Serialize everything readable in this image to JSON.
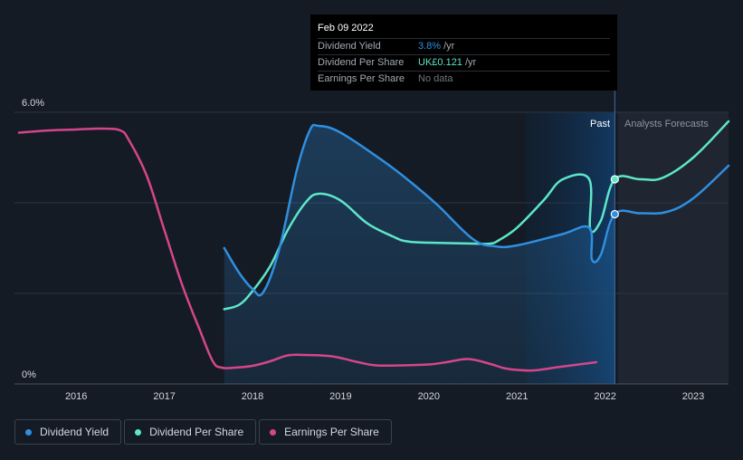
{
  "chart_data": {
    "type": "line",
    "y_axis": {
      "min": 0,
      "max": 6.0,
      "unit": "%",
      "tick_labels": [
        "6.0%",
        "0%"
      ],
      "grid": true
    },
    "x_axis": {
      "min": 2015.3,
      "max": 2023.4,
      "tick_labels": [
        "2016",
        "2017",
        "2018",
        "2019",
        "2020",
        "2021",
        "2022",
        "2023"
      ],
      "ticks": [
        2016,
        2017,
        2018,
        2019,
        2020,
        2021,
        2022,
        2023
      ]
    },
    "divider_date": 2022.11,
    "shaded_band": {
      "from": 2021.1,
      "to": 2022.11
    },
    "region_labels": {
      "past": "Past",
      "forecast": "Analysts Forecasts"
    },
    "series": [
      {
        "name": "Dividend Yield",
        "color": "#2f8fe0",
        "area": true,
        "points": [
          [
            2017.68,
            3.0
          ],
          [
            2017.85,
            2.45
          ],
          [
            2018.0,
            2.1
          ],
          [
            2018.12,
            2.02
          ],
          [
            2018.3,
            2.95
          ],
          [
            2018.5,
            4.7
          ],
          [
            2018.65,
            5.6
          ],
          [
            2018.75,
            5.7
          ],
          [
            2019.0,
            5.55
          ],
          [
            2019.5,
            4.9
          ],
          [
            2019.8,
            4.45
          ],
          [
            2020.1,
            3.95
          ],
          [
            2020.5,
            3.2
          ],
          [
            2020.75,
            3.04
          ],
          [
            2021.0,
            3.06
          ],
          [
            2021.5,
            3.3
          ],
          [
            2021.82,
            3.45
          ],
          [
            2021.85,
            2.75
          ],
          [
            2021.95,
            2.85
          ],
          [
            2022.11,
            3.75
          ],
          [
            2022.4,
            3.77
          ],
          [
            2022.7,
            3.8
          ],
          [
            2023.0,
            4.1
          ],
          [
            2023.4,
            4.82
          ]
        ],
        "forecast_from": 2022.11
      },
      {
        "name": "Dividend Per Share",
        "color": "#5ee6c9",
        "area": false,
        "points": [
          [
            2017.68,
            1.65
          ],
          [
            2017.85,
            1.75
          ],
          [
            2018.0,
            2.05
          ],
          [
            2018.2,
            2.6
          ],
          [
            2018.4,
            3.4
          ],
          [
            2018.6,
            4.0
          ],
          [
            2018.75,
            4.2
          ],
          [
            2019.0,
            4.05
          ],
          [
            2019.3,
            3.55
          ],
          [
            2019.6,
            3.25
          ],
          [
            2019.75,
            3.15
          ],
          [
            2020.0,
            3.12
          ],
          [
            2020.5,
            3.1
          ],
          [
            2020.7,
            3.1
          ],
          [
            2020.8,
            3.18
          ],
          [
            2021.0,
            3.45
          ],
          [
            2021.3,
            4.05
          ],
          [
            2021.52,
            4.52
          ],
          [
            2021.82,
            4.52
          ],
          [
            2021.83,
            3.43
          ],
          [
            2021.95,
            3.6
          ],
          [
            2022.11,
            4.52
          ],
          [
            2022.4,
            4.52
          ],
          [
            2022.65,
            4.55
          ],
          [
            2023.0,
            5.0
          ],
          [
            2023.4,
            5.8
          ]
        ],
        "forecast_from": 2022.11
      },
      {
        "name": "Earnings Per Share",
        "color": "#d4468b",
        "area": false,
        "points": [
          [
            2015.35,
            5.55
          ],
          [
            2015.7,
            5.6
          ],
          [
            2016.0,
            5.62
          ],
          [
            2016.3,
            5.64
          ],
          [
            2016.5,
            5.6
          ],
          [
            2016.6,
            5.38
          ],
          [
            2016.8,
            4.6
          ],
          [
            2017.0,
            3.4
          ],
          [
            2017.2,
            2.2
          ],
          [
            2017.4,
            1.2
          ],
          [
            2017.55,
            0.5
          ],
          [
            2017.65,
            0.36
          ],
          [
            2017.8,
            0.36
          ],
          [
            2018.0,
            0.4
          ],
          [
            2018.2,
            0.5
          ],
          [
            2018.4,
            0.63
          ],
          [
            2018.6,
            0.64
          ],
          [
            2018.9,
            0.61
          ],
          [
            2019.2,
            0.48
          ],
          [
            2019.4,
            0.41
          ],
          [
            2019.7,
            0.41
          ],
          [
            2020.0,
            0.43
          ],
          [
            2020.2,
            0.48
          ],
          [
            2020.45,
            0.55
          ],
          [
            2020.7,
            0.44
          ],
          [
            2020.85,
            0.35
          ],
          [
            2021.0,
            0.31
          ],
          [
            2021.2,
            0.3
          ],
          [
            2021.5,
            0.38
          ],
          [
            2021.9,
            0.48
          ]
        ]
      }
    ],
    "markers": [
      {
        "series": "Dividend Per Share",
        "x": 2022.11,
        "y": 4.52
      },
      {
        "series": "Dividend Yield",
        "x": 2022.11,
        "y": 3.75
      }
    ]
  },
  "tooltip": {
    "date": "Feb 09 2022",
    "rows": [
      {
        "label": "Dividend Yield",
        "value": "3.8%",
        "unit": "/yr",
        "color": "#2f8fe0"
      },
      {
        "label": "Dividend Per Share",
        "value": "UK£0.121",
        "unit": "/yr",
        "color": "#5ee6c9"
      },
      {
        "label": "Earnings Per Share",
        "value": "No data",
        "unit": "",
        "color": "#6f7680"
      }
    ]
  },
  "legend": [
    {
      "label": "Dividend Yield",
      "color": "#2f8fe0"
    },
    {
      "label": "Dividend Per Share",
      "color": "#5ee6c9"
    },
    {
      "label": "Earnings Per Share",
      "color": "#d4468b"
    }
  ]
}
